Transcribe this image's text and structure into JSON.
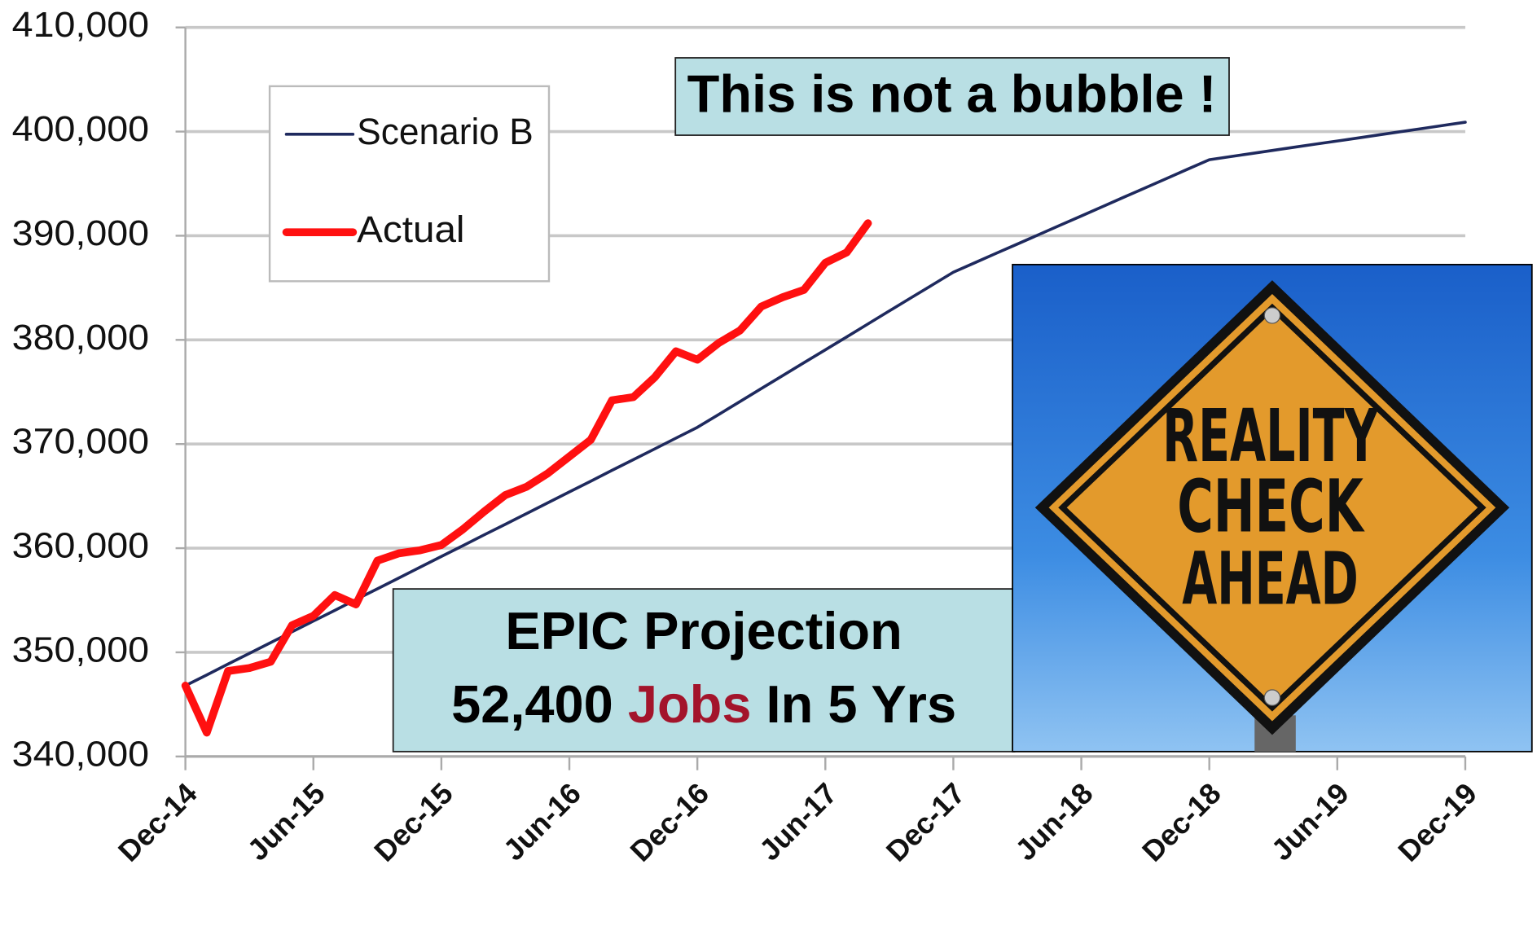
{
  "chart_data": {
    "type": "line",
    "categories": [
      "Dec-14",
      null,
      null,
      null,
      null,
      null,
      "Jun-15",
      null,
      null,
      null,
      null,
      null,
      "Dec-15",
      null,
      null,
      null,
      null,
      null,
      "Jun-16",
      null,
      null,
      null,
      null,
      null,
      "Dec-16",
      null,
      null,
      null,
      null,
      null,
      "Jun-17",
      null,
      null,
      null,
      null,
      null,
      "Dec-17",
      null,
      null,
      null,
      null,
      null,
      "Jun-18",
      null,
      null,
      null,
      null,
      null,
      "Dec-18",
      null,
      null,
      null,
      null,
      null,
      "Jun-19",
      null,
      null,
      null,
      null,
      null,
      "Dec-19"
    ],
    "series": [
      {
        "name": "Scenario B",
        "color": "#1f2a5e",
        "width": 3,
        "values": [
          346800,
          347830,
          348870,
          349900,
          350930,
          351970,
          353000,
          354030,
          355070,
          356100,
          357130,
          358170,
          359200,
          360230,
          361270,
          362300,
          363330,
          364370,
          365400,
          366430,
          367470,
          368500,
          369530,
          370570,
          371600,
          372840,
          374080,
          375330,
          376570,
          377810,
          379050,
          380290,
          381530,
          382780,
          384020,
          385260,
          386500,
          387400,
          388300,
          389200,
          390100,
          391000,
          391900,
          392800,
          393700,
          394600,
          395500,
          396400,
          397300,
          397600,
          397900,
          398200,
          398500,
          398800,
          399100,
          399400,
          399700,
          400000,
          400300,
          400600,
          400900
        ]
      },
      {
        "name": "Actual",
        "color": "#ff1010",
        "width": 8,
        "values": [
          346800,
          342300,
          348200,
          348500,
          349100,
          352600,
          353500,
          355500,
          354600,
          358800,
          359500,
          359800,
          360300,
          361800,
          363500,
          365100,
          365900,
          367200,
          368800,
          370400,
          374200,
          374500,
          376400,
          378900,
          378100,
          379700,
          380900,
          383200,
          384100,
          384800,
          387400,
          388400,
          391200,
          null,
          null,
          null,
          null,
          null,
          null,
          null,
          null,
          null,
          null,
          null,
          null,
          null,
          null,
          null,
          null,
          null,
          null,
          null,
          null,
          null,
          null,
          null,
          null,
          null,
          null,
          null,
          null
        ]
      }
    ],
    "ylim": [
      340000,
      410000
    ],
    "yticks": [
      {
        "value": 340000,
        "label": "340,000"
      },
      {
        "value": 350000,
        "label": "350,000"
      },
      {
        "value": 360000,
        "label": "360,000"
      },
      {
        "value": 370000,
        "label": "370,000"
      },
      {
        "value": 380000,
        "label": "380,000"
      },
      {
        "value": 390000,
        "label": "390,000"
      },
      {
        "value": 400000,
        "label": "400,000"
      },
      {
        "value": 410000,
        "label": "410,000"
      }
    ],
    "grid": true,
    "legend": "upper left",
    "annotations": {
      "bubble": "This is not a bubble !",
      "projection_line1": "EPIC Projection",
      "projection_line2": [
        "52,400 ",
        "Jobs",
        " In 5 Yrs"
      ]
    },
    "sign_text": [
      "REALITY",
      "CHECK",
      "AHEAD"
    ]
  }
}
